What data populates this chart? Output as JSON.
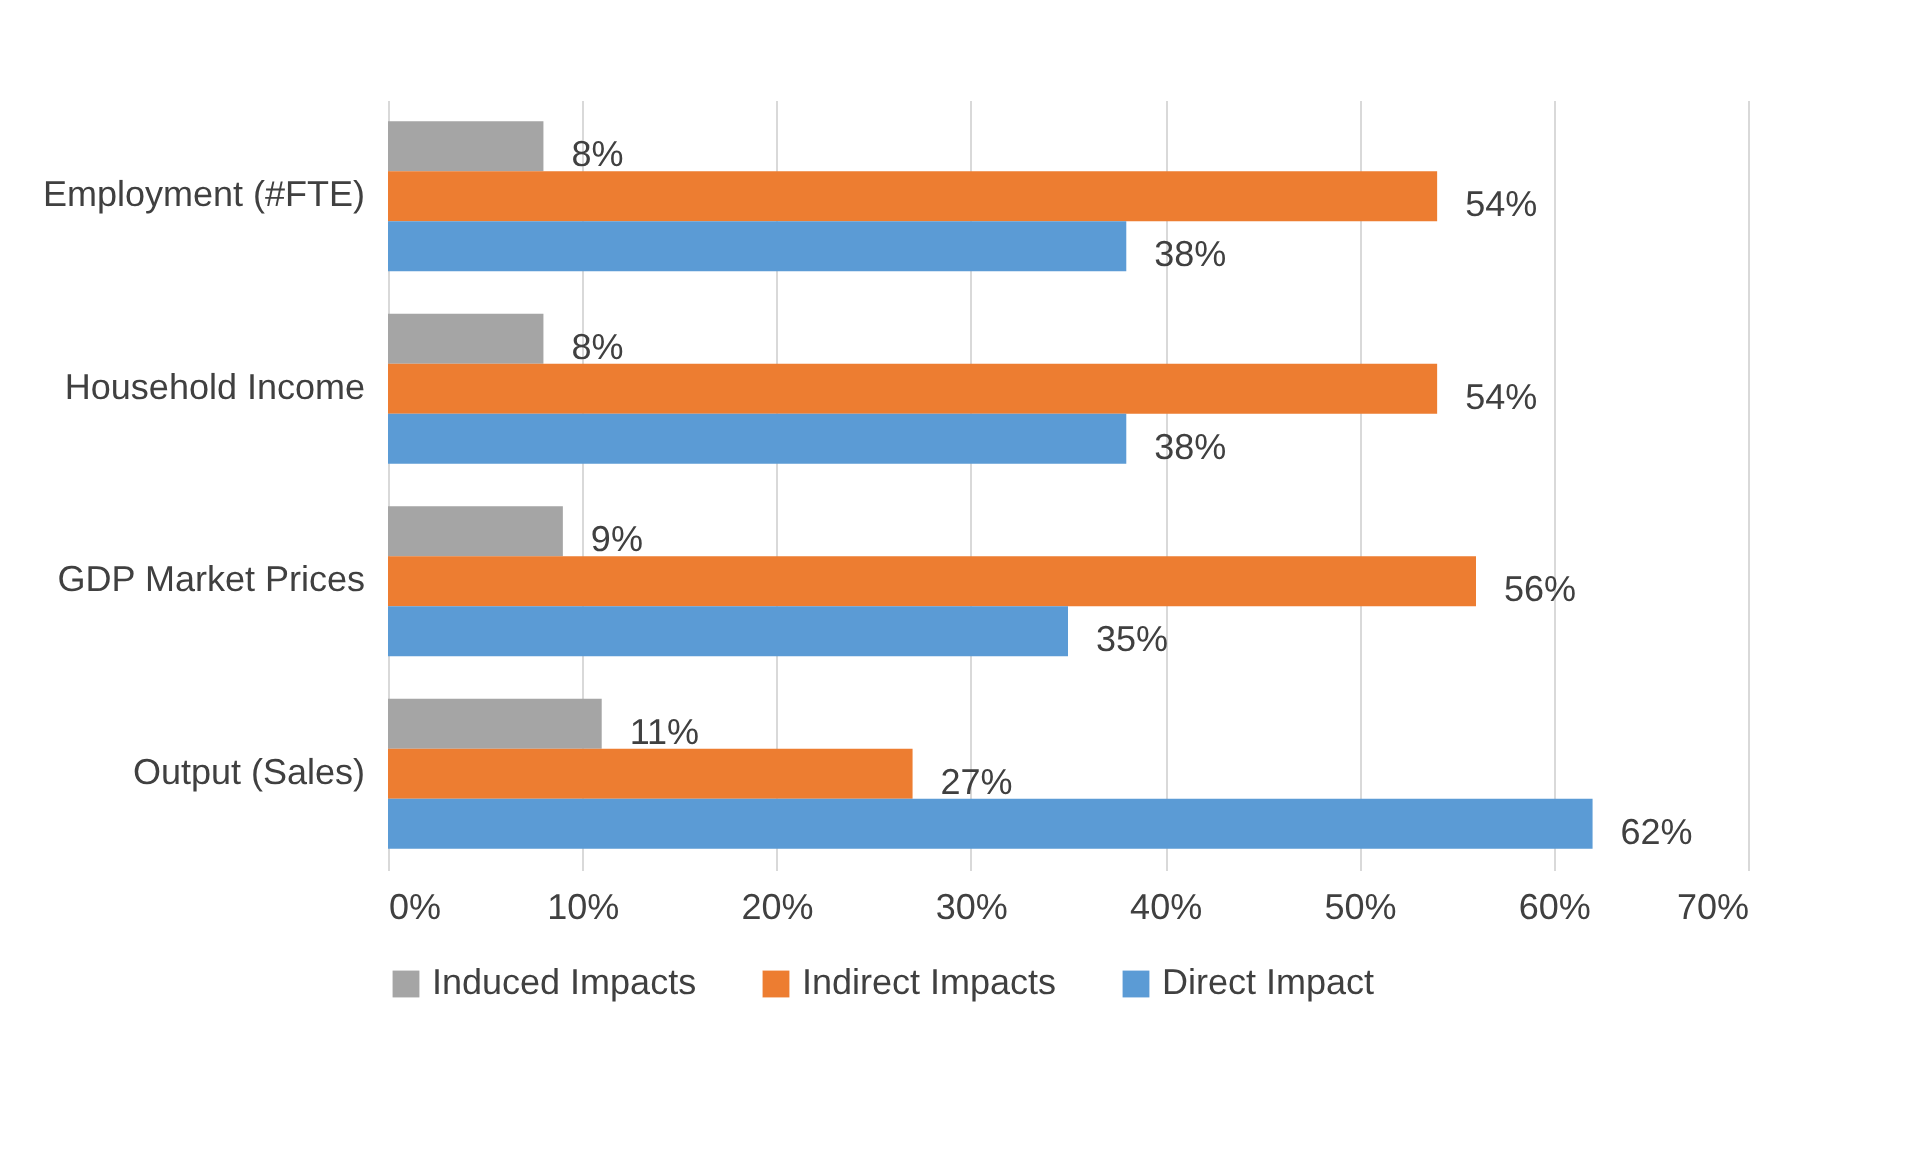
{
  "chart_data": {
    "type": "bar",
    "orientation": "horizontal",
    "categories": [
      "Employment (#FTE)",
      "Household Income",
      "GDP Market Prices",
      "Output (Sales)"
    ],
    "series": [
      {
        "name": "Induced Impacts",
        "color": "#a5a5a5",
        "values": [
          8,
          8,
          9,
          11
        ],
        "value_labels": [
          "8%",
          "8%",
          "9%",
          "11%"
        ]
      },
      {
        "name": "Indirect Impacts",
        "color": "#ed7d31",
        "values": [
          54,
          54,
          56,
          27
        ],
        "value_labels": [
          "54%",
          "54%",
          "56%",
          "27%"
        ]
      },
      {
        "name": "Direct Impact",
        "color": "#5b9bd5",
        "values": [
          38,
          38,
          35,
          62
        ],
        "value_labels": [
          "38%",
          "38%",
          "35%",
          "62%"
        ]
      }
    ],
    "xlim": [
      0,
      70
    ],
    "xticks": [
      {
        "value": 0,
        "label": "0%"
      },
      {
        "value": 10,
        "label": "10%"
      },
      {
        "value": 20,
        "label": "20%"
      },
      {
        "value": 30,
        "label": "30%"
      },
      {
        "value": 40,
        "label": "40%"
      },
      {
        "value": 50,
        "label": "50%"
      },
      {
        "value": 60,
        "label": "60%"
      },
      {
        "value": 70,
        "label": "70%"
      }
    ],
    "grid": "x",
    "legend": "bottom"
  }
}
